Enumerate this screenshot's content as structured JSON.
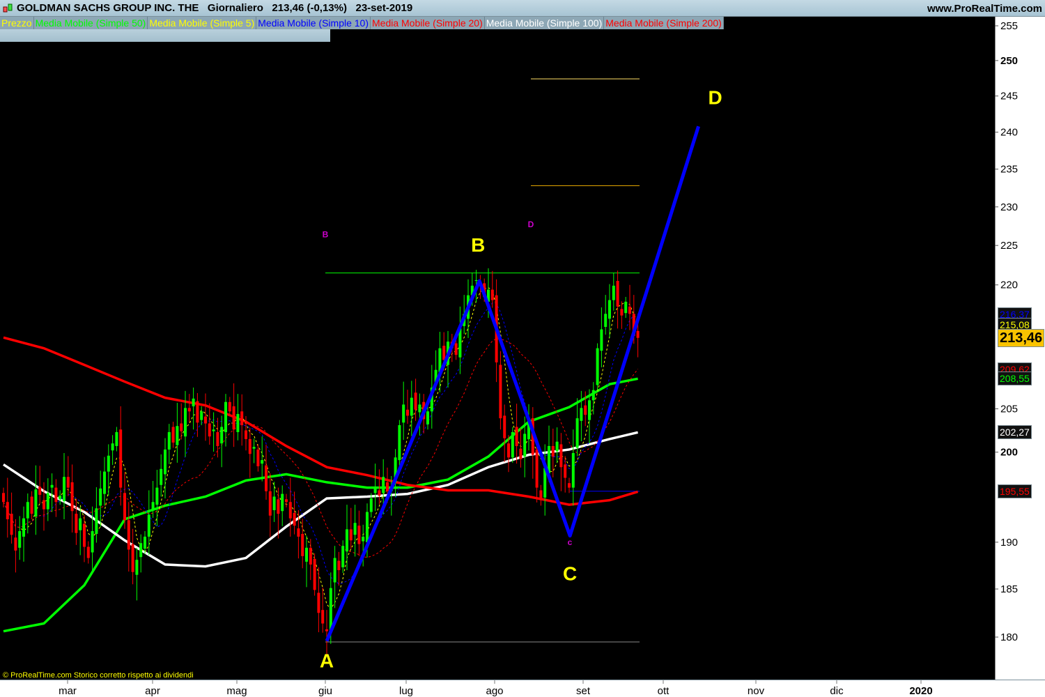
{
  "header": {
    "title": "GOLDMAN SACHS GROUP INC. THE   Giornaliero   213,46 (-0,13%)   23-set-2019",
    "site": "www.ProRealTime.com"
  },
  "legend": [
    {
      "label": "Prezzo",
      "color": "#ffff00"
    },
    {
      "label": "Media Mobile (Simple 50)",
      "color": "#00ff00"
    },
    {
      "label": "Media Mobile (Simple 5)",
      "color": "#ffff00"
    },
    {
      "label": "Media Mobile (Simple 10)",
      "color": "#0000ff"
    },
    {
      "label": "Media Mobile (Simple 20)",
      "color": "#ff0000"
    },
    {
      "label": "Media Mobile (Simple 100)",
      "color": "#ffffff"
    },
    {
      "label": "Media Mobile (Simple 200)",
      "color": "#ff0000"
    }
  ],
  "footer": "© ProRealTime.com  Storico corretto rispetto ai dividendi",
  "chart_data": {
    "type": "candlestick",
    "y_scale": "log",
    "ylim": [
      175,
      256
    ],
    "y_ticks": [
      255,
      250,
      245,
      240,
      235,
      230,
      225,
      220,
      205,
      200,
      190,
      185,
      180
    ],
    "y_ticks_bold": [
      250,
      200
    ],
    "x_ticks": [
      "mar",
      "apr",
      "mag",
      "giu",
      "lug",
      "ago",
      "set",
      "ott",
      "nov",
      "dic",
      "2020"
    ],
    "x_ticks_bold": [
      "2020"
    ],
    "colors": {
      "up": "#00ff00",
      "down": "#ff0000",
      "background": "#000000"
    },
    "close": [
      194.4,
      192.5,
      190.8,
      189.1,
      191.2,
      192.6,
      194.4,
      193.1,
      195.8,
      195.2,
      193.6,
      195.4,
      196.3,
      194.4,
      195.1,
      197.2,
      196.0,
      193.4,
      191.0,
      192.6,
      189.5,
      188.3,
      191.2,
      193.7,
      195.9,
      197.8,
      199.6,
      201.0,
      202.3,
      196.0,
      192.4,
      189.2,
      186.8,
      188.1,
      189.9,
      190.6,
      193.0,
      194.4,
      196.0,
      198.1,
      200.3,
      202.3,
      201.1,
      203.0,
      202.4,
      205.1,
      204.7,
      206.2,
      203.4,
      204.7,
      203.3,
      201.8,
      202.6,
      200.7,
      202.9,
      205.8,
      204.7,
      202.6,
      204.4,
      203.1,
      201.5,
      199.8,
      200.6,
      198.4,
      199.1,
      195.6,
      192.9,
      195.0,
      193.1,
      195.3,
      194.4,
      192.6,
      191.8,
      190.6,
      188.5,
      189.4,
      187.6,
      184.9,
      182.5,
      181.4,
      180.6,
      185.1,
      188.3,
      187.0,
      189.6,
      191.4,
      190.2,
      192.1,
      189.8,
      190.6,
      193.3,
      194.8,
      196.0,
      195.1,
      197.2,
      195.6,
      196.0,
      199.4,
      203.1,
      205.5,
      204.2,
      206.3,
      204.9,
      205.5,
      203.8,
      204.7,
      207.5,
      209.6,
      212.2,
      210.8,
      213.0,
      212.2,
      211.4,
      214.6,
      216.4,
      218.7,
      219.9,
      220.6,
      219.9,
      218.5,
      219.4,
      218.1,
      210.5,
      203.9,
      201.6,
      199.4,
      202.3,
      200.7,
      199.2,
      202.1,
      203.9,
      199.7,
      196.0,
      194.6,
      198.2,
      200.7,
      199.5,
      201.2,
      198.3,
      197.1,
      196.0,
      199.9,
      203.9,
      205.1,
      204.3,
      206.0,
      207.2,
      212.2,
      214.5,
      216.4,
      218.1,
      219.9,
      217.3,
      216.2,
      217.9,
      216.4,
      213.7,
      213.46
    ],
    "moving_averages": [
      {
        "name": "Media Mobile (Simple 50)",
        "color": "#00ff00",
        "values": [
          180.6,
          181.4,
          185.4,
          192.5,
          194.0,
          195.0,
          196.8,
          197.5,
          196.6,
          196.0,
          196.0,
          196.9,
          199.5,
          203.5,
          205.2,
          207.9,
          208.55
        ]
      },
      {
        "name": "Media Mobile (Simple 100)",
        "color": "#ffffff",
        "values": [
          198.6,
          195.6,
          193.3,
          190.2,
          187.6,
          187.4,
          188.3,
          191.7,
          194.8,
          195.0,
          195.3,
          196.3,
          198.3,
          199.7,
          200.3,
          201.5,
          202.27
        ]
      },
      {
        "name": "Media Mobile (Simple 200)",
        "color": "#ff0000",
        "values": [
          213.5,
          212.2,
          210.2,
          208.2,
          206.3,
          205.4,
          203.5,
          200.7,
          198.3,
          197.4,
          196.3,
          195.7,
          195.7,
          195.0,
          194.1,
          194.6,
          195.55
        ]
      },
      {
        "name": "Media Mobile (Simple 5)",
        "color": "#ffff00",
        "period": 5
      },
      {
        "name": "Media Mobile (Simple 10)",
        "color": "#0000ff",
        "period": 10
      },
      {
        "name": "Media Mobile (Simple 20)",
        "color": "#ff0000",
        "period": 20
      }
    ],
    "axis_value_labels": [
      {
        "text": "216,37",
        "value": 216.37,
        "color": "#0000ff"
      },
      {
        "text": "215,08",
        "value": 215.08,
        "color": "#ffff00"
      },
      {
        "text": "209,62",
        "value": 209.62,
        "color": "#ff0000"
      },
      {
        "text": "208,55",
        "value": 208.55,
        "color": "#00ff00"
      },
      {
        "text": "202,27",
        "value": 202.27,
        "color": "#ffffff"
      },
      {
        "text": "195,55",
        "value": 195.55,
        "color": "#ff0000"
      }
    ],
    "last_price_label": {
      "text": "213,46",
      "value": 213.46
    },
    "abcd_pattern": {
      "color": "#0000ff",
      "points": [
        {
          "label": "A",
          "price": 179.6
        },
        {
          "label": "B",
          "price": 220.5
        },
        {
          "label": "C",
          "price": 190.7
        },
        {
          "label": "D",
          "price": 240.8
        }
      ],
      "label_color": "#ffff00"
    },
    "levels": [
      {
        "price": 221.5,
        "color": "#00ff00"
      },
      {
        "price": 179.5,
        "color": "#888888"
      },
      {
        "price": 247.4,
        "color": "#ffe066"
      },
      {
        "price": 232.8,
        "color": "#f0b000"
      },
      {
        "price": 195.6,
        "color": "#0000ff"
      }
    ],
    "small_markers": [
      {
        "text": "B",
        "price": 226.4,
        "color": "#cc00cc"
      },
      {
        "text": "D",
        "price": 227.7,
        "color": "#cc00cc"
      },
      {
        "text": "c",
        "price": 190.0,
        "color": "#cc00cc"
      }
    ]
  }
}
